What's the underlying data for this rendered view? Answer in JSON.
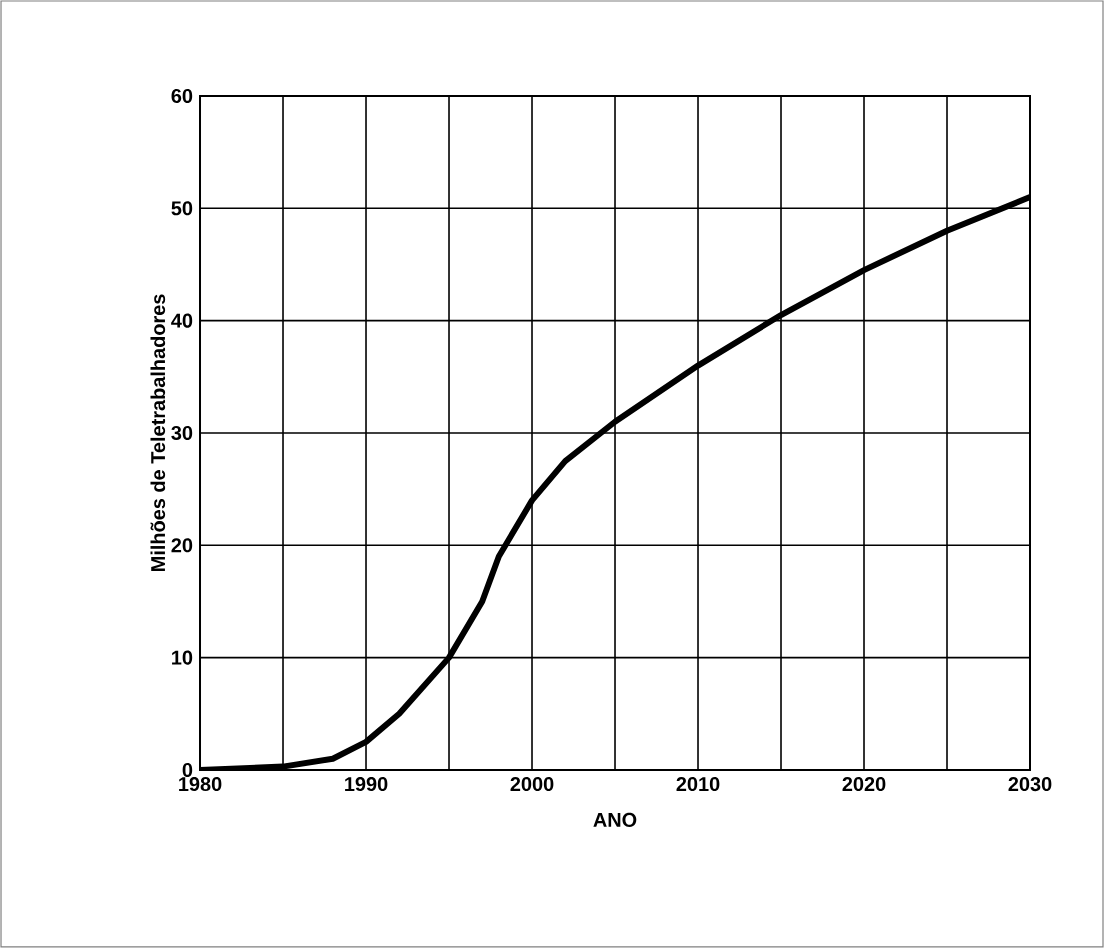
{
  "chart_data": {
    "type": "line",
    "xlabel": "ANO",
    "ylabel": "Milhões de Teletrabalhadores",
    "x": [
      1980,
      1985,
      1988,
      1990,
      1992,
      1995,
      1997,
      1998,
      2000,
      2002,
      2005,
      2010,
      2015,
      2020,
      2025,
      2030
    ],
    "series": [
      {
        "color": "#000000",
        "values": [
          0,
          0.3,
          1,
          2.5,
          5,
          10,
          15,
          19,
          24,
          27.5,
          31,
          36,
          40.5,
          44.5,
          48,
          51
        ]
      }
    ],
    "xlim": [
      1980,
      2030
    ],
    "xticks": [
      1980,
      1990,
      2000,
      2010,
      2020,
      2030
    ],
    "ylim": [
      0,
      60
    ],
    "yticks": [
      0,
      10,
      20,
      30,
      40,
      50,
      60
    ],
    "grid": true,
    "marker": "none",
    "line_style": "solid"
  }
}
